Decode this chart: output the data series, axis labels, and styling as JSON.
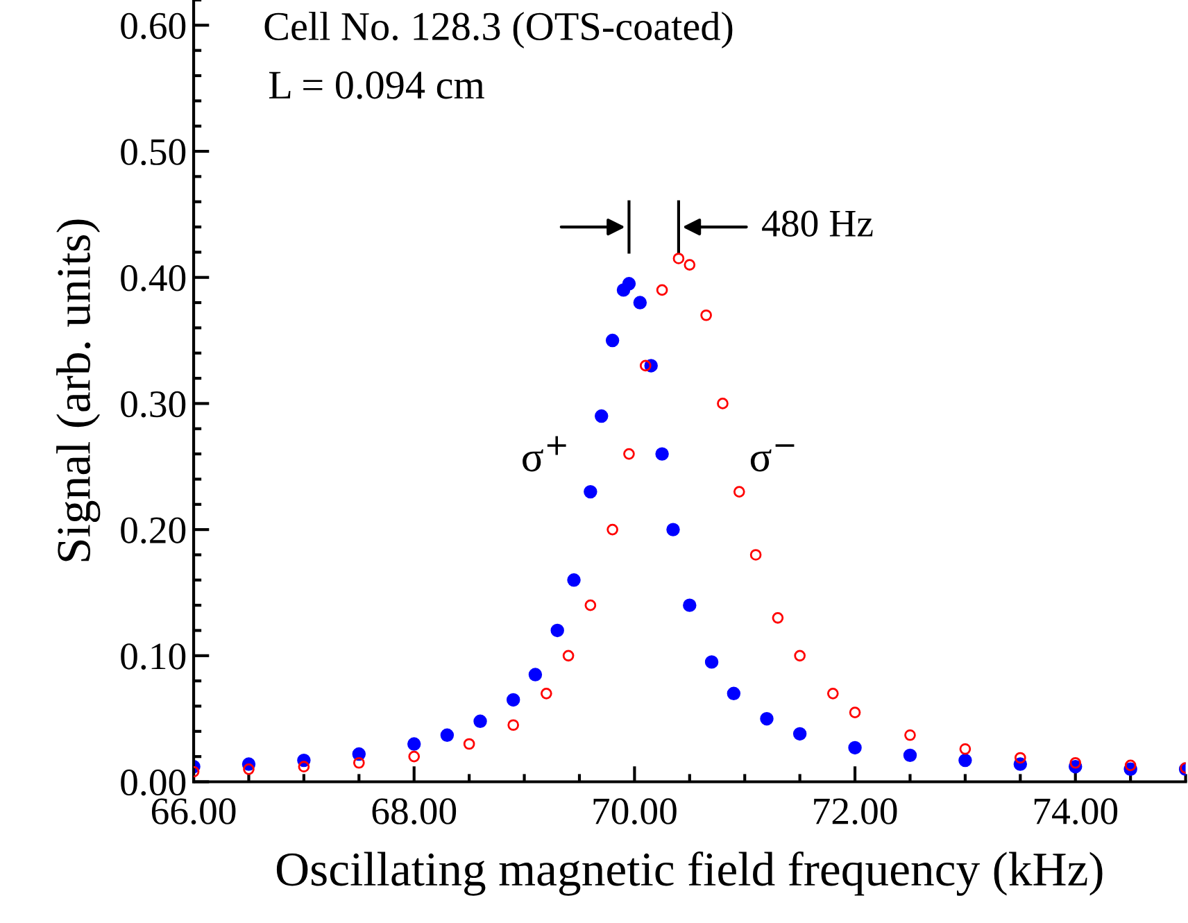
{
  "chart_data": {
    "type": "scatter",
    "xlabel": "Oscillating magnetic field frequency (kHz)",
    "ylabel": "Signal (arb. units)",
    "xlim": [
      66,
      75
    ],
    "ylim": [
      0,
      0.62
    ],
    "xticks": [
      {
        "value": 66,
        "label": "66.00"
      },
      {
        "value": 68,
        "label": "68.00"
      },
      {
        "value": 70,
        "label": "70.00"
      },
      {
        "value": 72,
        "label": "72.00"
      },
      {
        "value": 74,
        "label": "74.00"
      }
    ],
    "yticks": [
      {
        "value": 0,
        "label": "0.00"
      },
      {
        "value": 0.1,
        "label": "0.10"
      },
      {
        "value": 0.2,
        "label": "0.20"
      },
      {
        "value": 0.3,
        "label": "0.30"
      },
      {
        "value": 0.4,
        "label": "0.40"
      },
      {
        "value": 0.5,
        "label": "0.50"
      },
      {
        "value": 0.6,
        "label": "0.60"
      }
    ],
    "marker": "circle",
    "grid": false,
    "legend": false,
    "series": [
      {
        "color": "#0000ff",
        "x": [
          66.0,
          66.5,
          67.0,
          67.5,
          68.0,
          68.3,
          68.6,
          68.9,
          69.1,
          69.3,
          69.45,
          69.6,
          69.7,
          69.8,
          69.9,
          69.95,
          70.05,
          70.15,
          70.25,
          70.35,
          70.5,
          70.7,
          70.9,
          71.2,
          71.5,
          72.0,
          72.5,
          73.0,
          73.5,
          74.0,
          74.5,
          75.0
        ],
        "values": [
          0.012,
          0.014,
          0.017,
          0.022,
          0.03,
          0.037,
          0.048,
          0.065,
          0.085,
          0.12,
          0.16,
          0.23,
          0.29,
          0.35,
          0.39,
          0.395,
          0.38,
          0.33,
          0.26,
          0.2,
          0.14,
          0.095,
          0.07,
          0.05,
          0.038,
          0.027,
          0.021,
          0.017,
          0.014,
          0.012,
          0.01,
          0.01
        ]
      },
      {
        "color": "#ff0000",
        "x": [
          66.0,
          66.5,
          67.0,
          67.5,
          68.0,
          68.5,
          68.9,
          69.2,
          69.4,
          69.6,
          69.8,
          69.95,
          70.1,
          70.25,
          70.4,
          70.5,
          70.65,
          70.8,
          70.95,
          71.1,
          71.3,
          71.5,
          71.8,
          72.0,
          72.5,
          73.0,
          73.5,
          74.0,
          74.5,
          75.0
        ],
        "values": [
          0.008,
          0.01,
          0.012,
          0.015,
          0.02,
          0.03,
          0.045,
          0.07,
          0.1,
          0.14,
          0.2,
          0.26,
          0.33,
          0.39,
          0.415,
          0.41,
          0.37,
          0.3,
          0.23,
          0.18,
          0.13,
          0.1,
          0.07,
          0.055,
          0.037,
          0.026,
          0.019,
          0.015,
          0.013,
          0.011
        ]
      }
    ],
    "annotations": [
      "Cell No. 128.3 (OTS-coated)",
      "L = 0.094 cm",
      "480 Hz",
      "σ$^{+}$",
      "σ$^{−}$"
    ]
  }
}
